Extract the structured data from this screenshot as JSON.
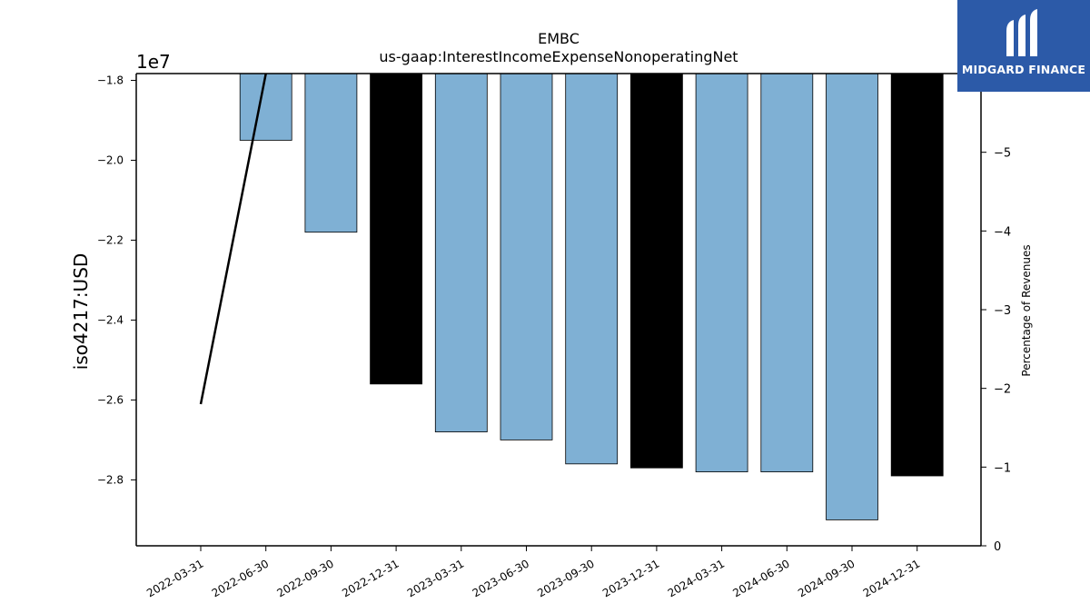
{
  "chart_data": {
    "type": "bar",
    "title": "EMBC",
    "subtitle": "us-gaap:InterestIncomeExpenseNonoperatingNet",
    "ylabel": "iso4217:USD",
    "y_offset_label": "1e7",
    "y2label": "Percentage of Revenues",
    "categories": [
      "2022-03-31",
      "2022-06-30",
      "2022-09-30",
      "2022-12-31",
      "2023-03-31",
      "2023-06-30",
      "2023-09-30",
      "2023-12-31",
      "2024-03-31",
      "2024-06-30",
      "2024-09-30",
      "2024-12-31"
    ],
    "values": [
      null,
      -19500000,
      -21800000,
      -25600000,
      -26800000,
      -27000000,
      -27600000,
      -27700000,
      -27800000,
      -27800000,
      -29000000,
      -27900000
    ],
    "bar_colors": [
      "#7fb0d4",
      "#7fb0d4",
      "#7fb0d4",
      "#000000",
      "#7fb0d4",
      "#7fb0d4",
      "#7fb0d4",
      "#000000",
      "#7fb0d4",
      "#7fb0d4",
      "#7fb0d4",
      "#000000"
    ],
    "ylim": [
      -29650000,
      -17830000
    ],
    "yticks": [
      -18000000,
      -20000000,
      -22000000,
      -24000000,
      -26000000,
      -28000000
    ],
    "ytick_labels": [
      "−1.8",
      "−2.0",
      "−2.2",
      "−2.4",
      "−2.6",
      "−2.8"
    ],
    "line": {
      "x_categories": [
        "2022-03-31",
        "2022-06-30"
      ],
      "values": [
        -1.8,
        -6.0
      ],
      "color": "#000000"
    },
    "y2lim": [
      0,
      -6.0
    ],
    "y2ticks": [
      0,
      -1,
      -2,
      -3,
      -4,
      -5
    ],
    "y2tick_labels": [
      "0",
      "−1",
      "−2",
      "−3",
      "−4",
      "−5"
    ],
    "grid": false,
    "legend": "none"
  },
  "logo": {
    "text": "MIDGARD FINANCE"
  }
}
